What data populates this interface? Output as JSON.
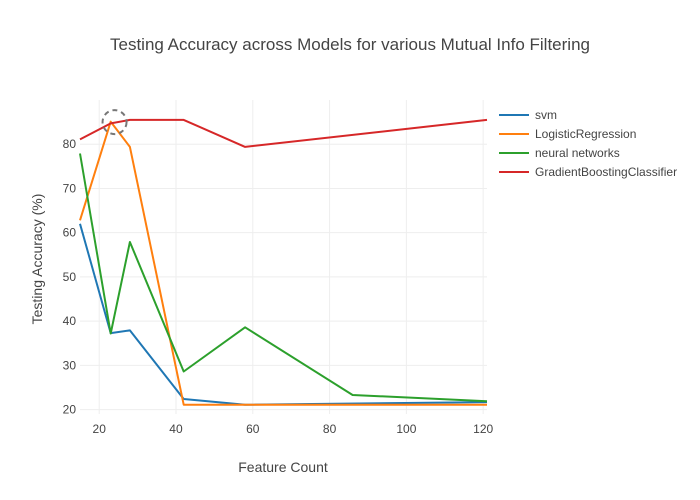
{
  "chart_data": {
    "type": "line",
    "title": "Testing Accuracy across Models for various Mutual Info Filtering",
    "xlabel": "Feature Count",
    "ylabel": "Testing Accuracy (%)",
    "xlim": [
      15,
      121
    ],
    "ylim": [
      19,
      90
    ],
    "xticks": [
      20,
      40,
      60,
      80,
      100,
      120
    ],
    "yticks": [
      20,
      30,
      40,
      50,
      60,
      70,
      80
    ],
    "grid": true,
    "legend_position": "right",
    "series": [
      {
        "name": "svm",
        "color": "#1f77b4",
        "x": [
          15,
          23,
          28,
          42,
          58,
          121
        ],
        "y": [
          62,
          37.3,
          37.9,
          22.4,
          21.1,
          21.7
        ]
      },
      {
        "name": "LogisticRegression",
        "color": "#ff7f0e",
        "x": [
          15,
          23,
          28,
          42,
          58,
          121
        ],
        "y": [
          62.8,
          85.1,
          79.4,
          21.1,
          21.1,
          21.1
        ]
      },
      {
        "name": "neural networks",
        "color": "#2ca02c",
        "x": [
          15,
          23,
          28,
          42,
          58,
          86,
          121
        ],
        "y": [
          77.9,
          37.2,
          57.9,
          28.6,
          38.6,
          23.3,
          21.9
        ]
      },
      {
        "name": "GradientBoostingClassifier",
        "color": "#d62728",
        "x": [
          15,
          23,
          28,
          42,
          58,
          121
        ],
        "y": [
          81.1,
          84.7,
          85.5,
          85.5,
          79.4,
          85.5
        ]
      }
    ],
    "annotations": [
      {
        "type": "dashed-circle",
        "x": 24,
        "y": 85,
        "color": "#777777"
      }
    ]
  }
}
